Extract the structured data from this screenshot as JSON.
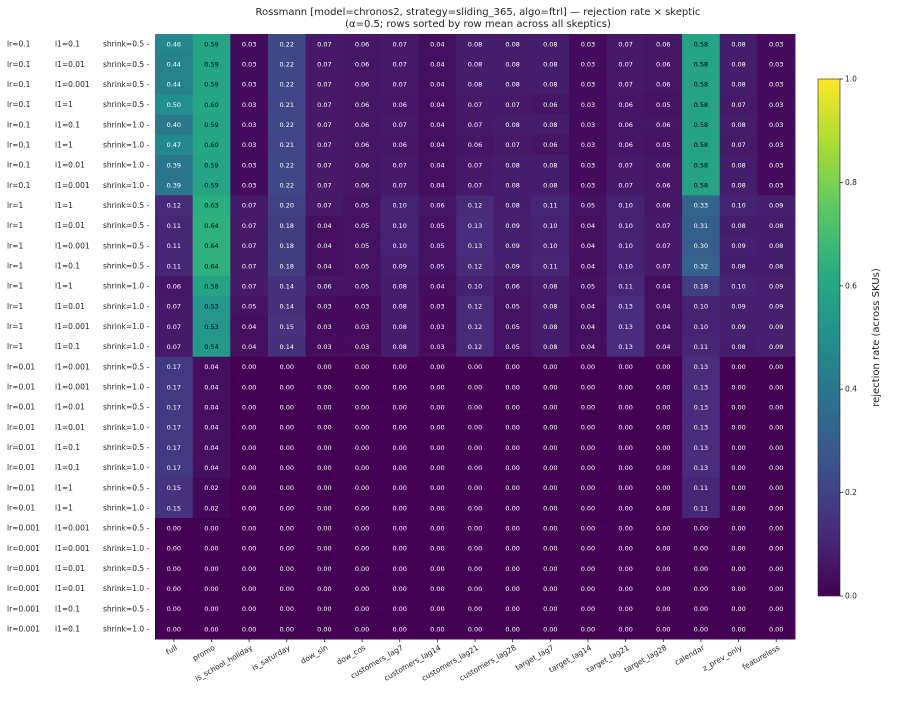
{
  "chart_data": {
    "type": "heatmap",
    "title": "Rossmann [model=chronos2, strategy=sliding_365, algo=ftrl] — rejection rate × skeptic",
    "subtitle": "(α=0.5;  rows sorted by row mean across all skeptics)",
    "colorbar_label": "rejection rate (across SKUs)",
    "colorbar_ticks": [
      "0.0",
      "0.2",
      "0.4",
      "0.6",
      "0.8",
      "1.0"
    ],
    "vmin": 0.0,
    "vmax": 1.0,
    "colormap": "viridis",
    "columns": [
      "full",
      "promo",
      "is_school_holiday",
      "is_saturday",
      "dow_sin",
      "dow_cos",
      "customers_lag7",
      "customers_lag14",
      "customers_lag21",
      "customers_lag28",
      "target_lag7",
      "target_lag14",
      "target_lag21",
      "target_lag28",
      "calendar",
      "z_prev_only",
      "featureless"
    ],
    "rows": [
      {
        "lr": "lr=0.1",
        "l1": "l1=0.1",
        "shrink": "shrink=0.5",
        "values": [
          0.46,
          0.59,
          0.03,
          0.22,
          0.07,
          0.06,
          0.07,
          0.04,
          0.08,
          0.08,
          0.08,
          0.03,
          0.07,
          0.06,
          0.58,
          0.08,
          0.03
        ]
      },
      {
        "lr": "lr=0.1",
        "l1": "l1=0.01",
        "shrink": "shrink=0.5",
        "values": [
          0.44,
          0.59,
          0.03,
          0.22,
          0.07,
          0.06,
          0.07,
          0.04,
          0.08,
          0.08,
          0.08,
          0.03,
          0.07,
          0.06,
          0.58,
          0.08,
          0.03
        ]
      },
      {
        "lr": "lr=0.1",
        "l1": "l1=0.001",
        "shrink": "shrink=0.5",
        "values": [
          0.44,
          0.59,
          0.03,
          0.22,
          0.07,
          0.06,
          0.07,
          0.04,
          0.08,
          0.08,
          0.08,
          0.03,
          0.07,
          0.06,
          0.58,
          0.08,
          0.03
        ]
      },
      {
        "lr": "lr=0.1",
        "l1": "l1=1",
        "shrink": "shrink=0.5",
        "values": [
          0.5,
          0.6,
          0.03,
          0.21,
          0.07,
          0.06,
          0.06,
          0.04,
          0.07,
          0.07,
          0.06,
          0.03,
          0.06,
          0.05,
          0.58,
          0.07,
          0.03
        ]
      },
      {
        "lr": "lr=0.1",
        "l1": "l1=0.1",
        "shrink": "shrink=1.0",
        "values": [
          0.4,
          0.59,
          0.03,
          0.22,
          0.07,
          0.06,
          0.07,
          0.04,
          0.07,
          0.08,
          0.08,
          0.03,
          0.06,
          0.06,
          0.58,
          0.08,
          0.03
        ]
      },
      {
        "lr": "lr=0.1",
        "l1": "l1=1",
        "shrink": "shrink=1.0",
        "values": [
          0.47,
          0.6,
          0.03,
          0.21,
          0.07,
          0.06,
          0.06,
          0.04,
          0.06,
          0.07,
          0.06,
          0.03,
          0.06,
          0.05,
          0.58,
          0.07,
          0.03
        ]
      },
      {
        "lr": "lr=0.1",
        "l1": "l1=0.01",
        "shrink": "shrink=1.0",
        "values": [
          0.39,
          0.59,
          0.03,
          0.22,
          0.07,
          0.06,
          0.07,
          0.04,
          0.07,
          0.08,
          0.08,
          0.03,
          0.07,
          0.06,
          0.58,
          0.08,
          0.03
        ]
      },
      {
        "lr": "lr=0.1",
        "l1": "l1=0.001",
        "shrink": "shrink=1.0",
        "values": [
          0.39,
          0.59,
          0.03,
          0.22,
          0.07,
          0.06,
          0.07,
          0.04,
          0.07,
          0.08,
          0.08,
          0.03,
          0.07,
          0.06,
          0.58,
          0.08,
          0.03
        ]
      },
      {
        "lr": "lr=1",
        "l1": "l1=1",
        "shrink": "shrink=0.5",
        "values": [
          0.12,
          0.63,
          0.07,
          0.2,
          0.07,
          0.05,
          0.1,
          0.06,
          0.12,
          0.08,
          0.11,
          0.05,
          0.1,
          0.06,
          0.33,
          0.1,
          0.09
        ]
      },
      {
        "lr": "lr=1",
        "l1": "l1=0.01",
        "shrink": "shrink=0.5",
        "values": [
          0.11,
          0.64,
          0.07,
          0.18,
          0.04,
          0.05,
          0.1,
          0.05,
          0.13,
          0.09,
          0.1,
          0.04,
          0.1,
          0.07,
          0.31,
          0.08,
          0.08
        ]
      },
      {
        "lr": "lr=1",
        "l1": "l1=0.001",
        "shrink": "shrink=0.5",
        "values": [
          0.11,
          0.64,
          0.07,
          0.18,
          0.04,
          0.05,
          0.1,
          0.05,
          0.13,
          0.09,
          0.1,
          0.04,
          0.1,
          0.07,
          0.3,
          0.09,
          0.08
        ]
      },
      {
        "lr": "lr=1",
        "l1": "l1=0.1",
        "shrink": "shrink=0.5",
        "values": [
          0.11,
          0.64,
          0.07,
          0.18,
          0.04,
          0.05,
          0.09,
          0.05,
          0.12,
          0.09,
          0.11,
          0.04,
          0.1,
          0.07,
          0.32,
          0.08,
          0.08
        ]
      },
      {
        "lr": "lr=1",
        "l1": "l1=1",
        "shrink": "shrink=1.0",
        "values": [
          0.06,
          0.58,
          0.07,
          0.14,
          0.06,
          0.05,
          0.08,
          0.04,
          0.1,
          0.06,
          0.08,
          0.05,
          0.11,
          0.04,
          0.18,
          0.1,
          0.09
        ]
      },
      {
        "lr": "lr=1",
        "l1": "l1=0.01",
        "shrink": "shrink=1.0",
        "values": [
          0.07,
          0.53,
          0.05,
          0.14,
          0.03,
          0.03,
          0.08,
          0.03,
          0.12,
          0.05,
          0.08,
          0.04,
          0.13,
          0.04,
          0.1,
          0.09,
          0.09
        ]
      },
      {
        "lr": "lr=1",
        "l1": "l1=0.001",
        "shrink": "shrink=1.0",
        "values": [
          0.07,
          0.53,
          0.04,
          0.15,
          0.03,
          0.03,
          0.08,
          0.03,
          0.12,
          0.05,
          0.08,
          0.04,
          0.13,
          0.04,
          0.1,
          0.09,
          0.09
        ]
      },
      {
        "lr": "lr=1",
        "l1": "l1=0.1",
        "shrink": "shrink=1.0",
        "values": [
          0.07,
          0.54,
          0.04,
          0.14,
          0.03,
          0.03,
          0.08,
          0.03,
          0.12,
          0.05,
          0.08,
          0.04,
          0.13,
          0.04,
          0.11,
          0.08,
          0.09
        ]
      },
      {
        "lr": "lr=0.01",
        "l1": "l1=0.001",
        "shrink": "shrink=0.5",
        "values": [
          0.17,
          0.04,
          0.0,
          0.0,
          0.0,
          0.0,
          0.0,
          0.0,
          0.0,
          0.0,
          0.0,
          0.0,
          0.0,
          0.0,
          0.13,
          0.0,
          0.0
        ]
      },
      {
        "lr": "lr=0.01",
        "l1": "l1=0.001",
        "shrink": "shrink=1.0",
        "values": [
          0.17,
          0.04,
          0.0,
          0.0,
          0.0,
          0.0,
          0.0,
          0.0,
          0.0,
          0.0,
          0.0,
          0.0,
          0.0,
          0.0,
          0.13,
          0.0,
          0.0
        ]
      },
      {
        "lr": "lr=0.01",
        "l1": "l1=0.01",
        "shrink": "shrink=0.5",
        "values": [
          0.17,
          0.04,
          0.0,
          0.0,
          0.0,
          0.0,
          0.0,
          0.0,
          0.0,
          0.0,
          0.0,
          0.0,
          0.0,
          0.0,
          0.13,
          0.0,
          0.0
        ]
      },
      {
        "lr": "lr=0.01",
        "l1": "l1=0.01",
        "shrink": "shrink=1.0",
        "values": [
          0.17,
          0.04,
          0.0,
          0.0,
          0.0,
          0.0,
          0.0,
          0.0,
          0.0,
          0.0,
          0.0,
          0.0,
          0.0,
          0.0,
          0.13,
          0.0,
          0.0
        ]
      },
      {
        "lr": "lr=0.01",
        "l1": "l1=0.1",
        "shrink": "shrink=0.5",
        "values": [
          0.17,
          0.04,
          0.0,
          0.0,
          0.0,
          0.0,
          0.0,
          0.0,
          0.0,
          0.0,
          0.0,
          0.0,
          0.0,
          0.0,
          0.13,
          0.0,
          0.0
        ]
      },
      {
        "lr": "lr=0.01",
        "l1": "l1=0.1",
        "shrink": "shrink=1.0",
        "values": [
          0.17,
          0.04,
          0.0,
          0.0,
          0.0,
          0.0,
          0.0,
          0.0,
          0.0,
          0.0,
          0.0,
          0.0,
          0.0,
          0.0,
          0.13,
          0.0,
          0.0
        ]
      },
      {
        "lr": "lr=0.01",
        "l1": "l1=1",
        "shrink": "shrink=0.5",
        "values": [
          0.15,
          0.02,
          0.0,
          0.0,
          0.0,
          0.0,
          0.0,
          0.0,
          0.0,
          0.0,
          0.0,
          0.0,
          0.0,
          0.0,
          0.11,
          0.0,
          0.0
        ]
      },
      {
        "lr": "lr=0.01",
        "l1": "l1=1",
        "shrink": "shrink=1.0",
        "values": [
          0.15,
          0.02,
          0.0,
          0.0,
          0.0,
          0.0,
          0.0,
          0.0,
          0.0,
          0.0,
          0.0,
          0.0,
          0.0,
          0.0,
          0.11,
          0.0,
          0.0
        ]
      },
      {
        "lr": "lr=0.001",
        "l1": "l1=0.001",
        "shrink": "shrink=0.5",
        "values": [
          0.0,
          0.0,
          0.0,
          0.0,
          0.0,
          0.0,
          0.0,
          0.0,
          0.0,
          0.0,
          0.0,
          0.0,
          0.0,
          0.0,
          0.0,
          0.0,
          0.0
        ]
      },
      {
        "lr": "lr=0.001",
        "l1": "l1=0.001",
        "shrink": "shrink=1.0",
        "values": [
          0.0,
          0.0,
          0.0,
          0.0,
          0.0,
          0.0,
          0.0,
          0.0,
          0.0,
          0.0,
          0.0,
          0.0,
          0.0,
          0.0,
          0.0,
          0.0,
          0.0
        ]
      },
      {
        "lr": "lr=0.001",
        "l1": "l1=0.01",
        "shrink": "shrink=0.5",
        "values": [
          0.0,
          0.0,
          0.0,
          0.0,
          0.0,
          0.0,
          0.0,
          0.0,
          0.0,
          0.0,
          0.0,
          0.0,
          0.0,
          0.0,
          0.0,
          0.0,
          0.0
        ]
      },
      {
        "lr": "lr=0.001",
        "l1": "l1=0.01",
        "shrink": "shrink=1.0",
        "values": [
          0.0,
          0.0,
          0.0,
          0.0,
          0.0,
          0.0,
          0.0,
          0.0,
          0.0,
          0.0,
          0.0,
          0.0,
          0.0,
          0.0,
          0.0,
          0.0,
          0.0
        ]
      },
      {
        "lr": "lr=0.001",
        "l1": "l1=0.1",
        "shrink": "shrink=0.5",
        "values": [
          0.0,
          0.0,
          0.0,
          0.0,
          0.0,
          0.0,
          0.0,
          0.0,
          0.0,
          0.0,
          0.0,
          0.0,
          0.0,
          0.0,
          0.0,
          0.0,
          0.0
        ]
      },
      {
        "lr": "lr=0.001",
        "l1": "l1=0.1",
        "shrink": "shrink=1.0",
        "values": [
          0.0,
          0.0,
          0.0,
          0.0,
          0.0,
          0.0,
          0.0,
          0.0,
          0.0,
          0.0,
          0.0,
          0.0,
          0.0,
          0.0,
          0.0,
          0.0,
          0.0
        ]
      }
    ]
  }
}
